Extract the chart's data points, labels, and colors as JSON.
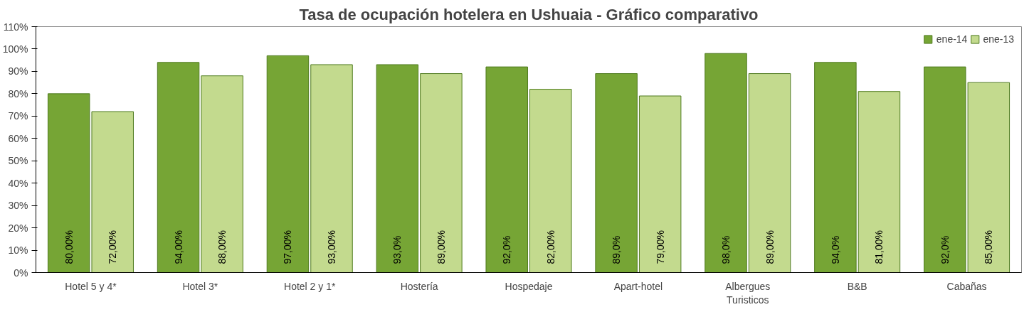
{
  "chart_data": {
    "type": "bar",
    "title": "Tasa de ocupación hotelera en Ushuaia - Gráfico comparativo",
    "categories": [
      "Hotel 5 y 4*",
      "Hotel 3*",
      "Hotel 2 y 1*",
      "Hostería",
      "Hospedaje",
      "Apart-hotel",
      "Albergues Turisticos",
      "B&B",
      "Cabañas"
    ],
    "series": [
      {
        "name": "ene-14",
        "color": "#76a535",
        "values": [
          80,
          94,
          97,
          93,
          92,
          89,
          98,
          94,
          92
        ],
        "value_labels": [
          "80,00%",
          "94,00%",
          "97,00%",
          "93,0%",
          "92,0%",
          "89,0%",
          "98,0%",
          "94,0%",
          "92,0%"
        ]
      },
      {
        "name": "ene-13",
        "color": "#c3da8e",
        "values": [
          72,
          88,
          93,
          89,
          82,
          79,
          89,
          81,
          85
        ],
        "value_labels": [
          "72,00%",
          "88,00%",
          "93,00%",
          "89,00%",
          "82,00%",
          "79,00%",
          "89,00%",
          "81,00%",
          "85,00%"
        ]
      }
    ],
    "ylim": [
      0,
      110
    ],
    "yticks": [
      {
        "value": 0,
        "label": "0%"
      },
      {
        "value": 10,
        "label": "10%"
      },
      {
        "value": 20,
        "label": "20%"
      },
      {
        "value": 30,
        "label": "30%"
      },
      {
        "value": 40,
        "label": "40%"
      },
      {
        "value": 50,
        "label": "50%"
      },
      {
        "value": 60,
        "label": "60%"
      },
      {
        "value": 70,
        "label": "70%"
      },
      {
        "value": 80,
        "label": "80%"
      },
      {
        "value": 90,
        "label": "90%"
      },
      {
        "value": 100,
        "label": "100%"
      },
      {
        "value": 110,
        "label": "110%"
      }
    ],
    "grid": false,
    "legend": "top right"
  }
}
